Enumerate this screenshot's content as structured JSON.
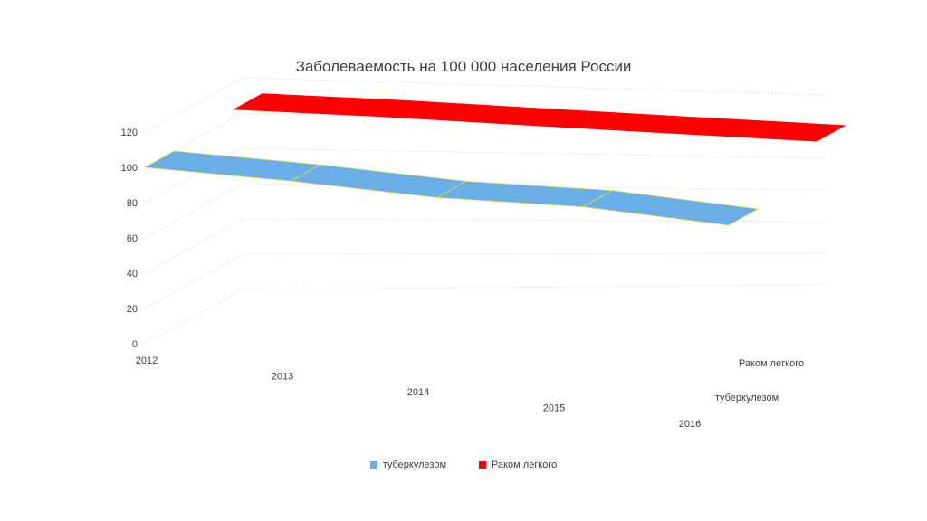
{
  "chart_data": {
    "type": "area",
    "title": "Заболеваемость на 100 000 населения России",
    "categories": [
      "2012",
      "2013",
      "2014",
      "2015",
      "2016"
    ],
    "series": [
      {
        "name": "туберкулезом",
        "values": [
          100,
          94,
          86,
          82,
          72
        ],
        "color": "#6aaee8"
      },
      {
        "name": "Раком легкого",
        "values": [
          105,
          103,
          100,
          97,
          94
        ],
        "color": "#ff0000"
      }
    ],
    "depth_labels": [
      "Раком легкого",
      "туберкулезом"
    ],
    "y_ticks": [
      "0",
      "20",
      "40",
      "60",
      "80",
      "100",
      "120"
    ],
    "ylim": [
      0,
      120
    ],
    "legend_position": "bottom",
    "grid": true
  }
}
